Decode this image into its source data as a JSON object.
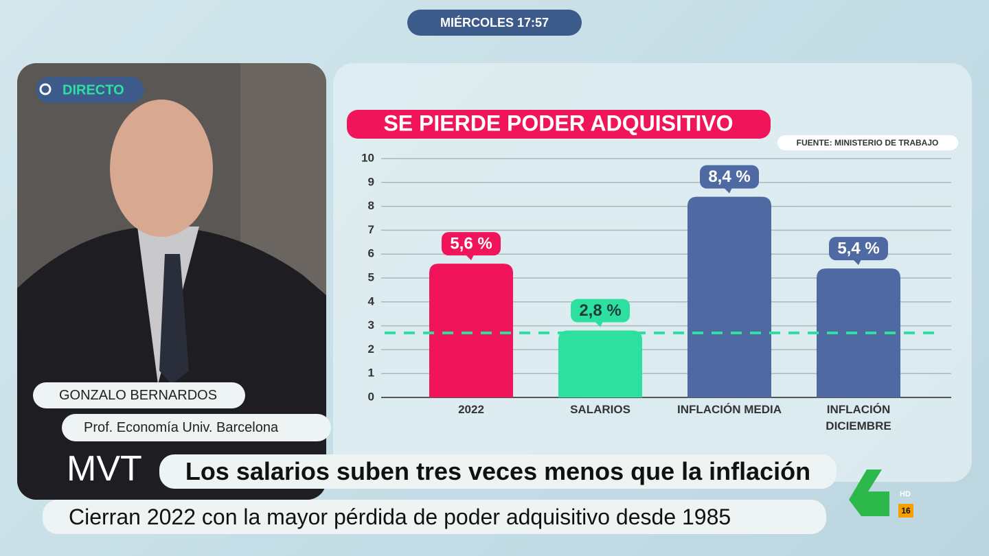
{
  "broadcast": {
    "clock": "MIÉRCOLES 17:57",
    "live": "DIRECTO",
    "guest_name": "GONZALO BERNARDOS",
    "guest_role": "Prof. Economía Univ. Barcelona",
    "show_logo": "MVT",
    "headline": "Los salarios suben tres veces menos que la inflación",
    "subheadline": "Cierran 2022 con la mayor pérdida de poder adquisitivo desde 1985",
    "channel_hd": "HD",
    "age_rating": "16"
  },
  "chart_data": {
    "type": "bar",
    "title": "SE PIERDE PODER ADQUISITIVO",
    "source": "FUENTE: MINISTERIO DE TRABAJO",
    "categories": [
      "2022",
      "SALARIOS",
      "INFLACIÓN MEDIA",
      "INFLACIÓN DICIEMBRE"
    ],
    "values": [
      5.6,
      2.8,
      8.4,
      5.4
    ],
    "value_labels": [
      "5,6 %",
      "2,8 %",
      "8,4 %",
      "5,4 %"
    ],
    "colors": [
      "#f0145a",
      "#2ee0a0",
      "#4f6aa3",
      "#4f6aa3"
    ],
    "reference_line": {
      "value": 2.7,
      "color": "#2ee0a0"
    },
    "ylim": [
      0,
      10
    ],
    "yticks": [
      0,
      1,
      2,
      3,
      4,
      5,
      6,
      7,
      8,
      9,
      10
    ],
    "grid": true
  }
}
